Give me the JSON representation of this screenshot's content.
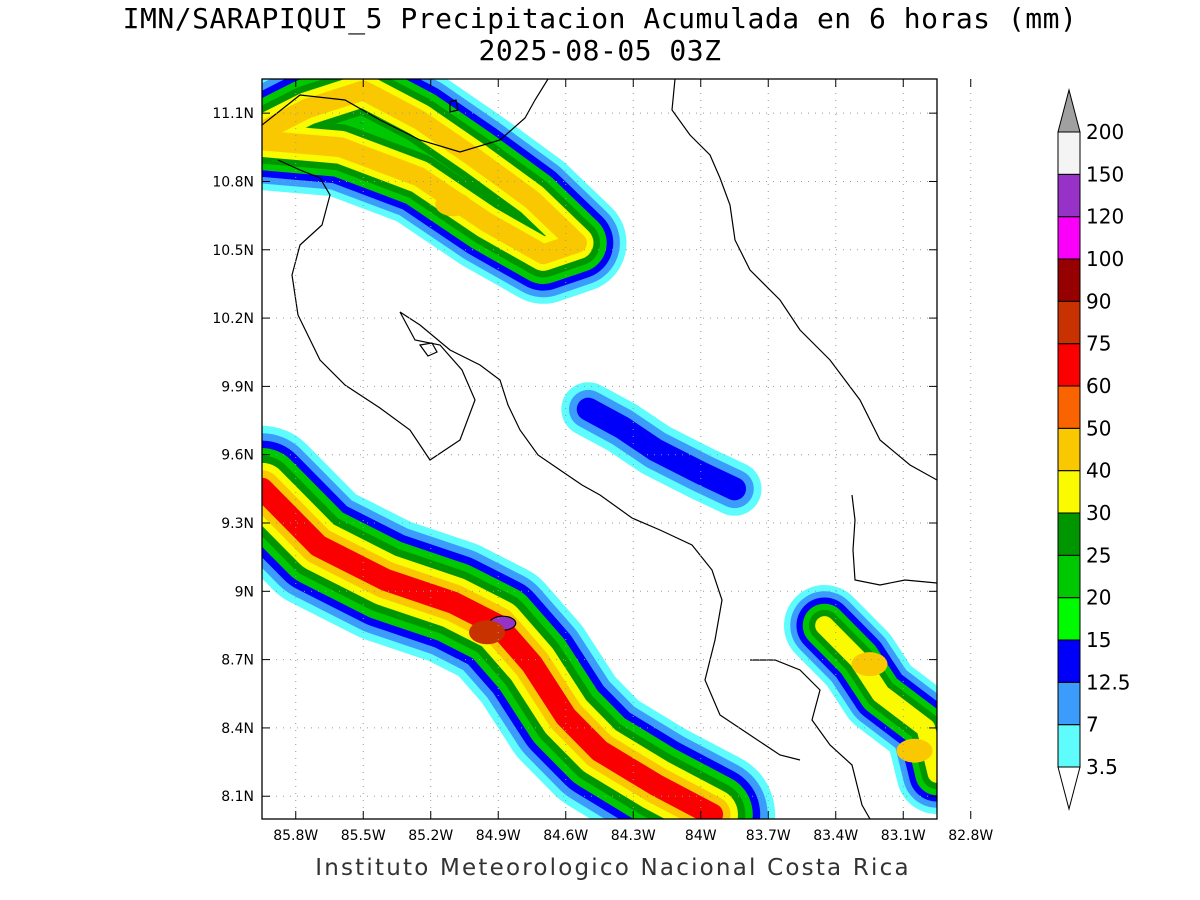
{
  "title": "IMN/SARAPIQUI_5 Precipitacion Acumulada en 6 horas (mm)",
  "subtitle": "2025-08-05 03Z",
  "footer": "Instituto Meteorologico Nacional Costa Rica",
  "axes": {
    "lon_ticks": [
      "85.8W",
      "85.5W",
      "85.2W",
      "84.9W",
      "84.6W",
      "84.3W",
      "84W",
      "83.7W",
      "83.4W",
      "83.1W",
      "82.8W"
    ],
    "lon_values": [
      -85.8,
      -85.5,
      -85.2,
      -84.9,
      -84.6,
      -84.3,
      -84.0,
      -83.7,
      -83.4,
      -83.1,
      -82.8
    ],
    "lat_ticks": [
      "11.1N",
      "10.8N",
      "10.5N",
      "10.2N",
      "9.9N",
      "9.6N",
      "9.3N",
      "9N",
      "8.7N",
      "8.4N",
      "8.1N"
    ],
    "lat_values": [
      11.1,
      10.8,
      10.5,
      10.2,
      9.9,
      9.6,
      9.3,
      9.0,
      8.7,
      8.4,
      8.1
    ],
    "lon_range": [
      -85.95,
      -82.95
    ],
    "lat_range": [
      8.0,
      11.25
    ],
    "grid": true
  },
  "colorbar": {
    "labels": [
      "3.5",
      "7",
      "12.5",
      "15",
      "20",
      "25",
      "30",
      "40",
      "50",
      "60",
      "75",
      "90",
      "100",
      "120",
      "150",
      "200"
    ],
    "colors": [
      "#5efcfc",
      "#3c9cfc",
      "#0000fa",
      "#00fa00",
      "#00c800",
      "#009600",
      "#fafa00",
      "#fac800",
      "#fa6400",
      "#fa0000",
      "#c83200",
      "#960000",
      "#fa00fa",
      "#9632c8",
      "#f4f4f4",
      "#a0a0a0"
    ],
    "lower_cap": "#ffffff",
    "upper_cap": "#a0a0a0"
  },
  "precip_bands": [
    {
      "path": [
        [
          -85.95,
          11.02
        ],
        [
          -85.75,
          11.12
        ],
        [
          -85.5,
          11.2
        ],
        [
          -85.25,
          11.07
        ],
        [
          -85.0,
          10.9
        ],
        [
          -84.75,
          10.72
        ],
        [
          -84.55,
          10.53
        ],
        [
          -84.7,
          10.48
        ],
        [
          -84.95,
          10.62
        ],
        [
          -85.25,
          10.82
        ],
        [
          -85.6,
          10.95
        ],
        [
          -85.95,
          10.98
        ]
      ],
      "levels": [
        3.5,
        7,
        12.5,
        20,
        25,
        30,
        40
      ],
      "width_deg": 0.22
    },
    {
      "path": [
        [
          -85.95,
          9.45
        ],
        [
          -85.7,
          9.2
        ],
        [
          -85.4,
          9.05
        ],
        [
          -85.1,
          8.95
        ],
        [
          -84.9,
          8.85
        ],
        [
          -84.75,
          8.68
        ],
        [
          -84.6,
          8.45
        ],
        [
          -84.45,
          8.3
        ],
        [
          -84.2,
          8.15
        ],
        [
          -83.95,
          8.02
        ]
      ],
      "levels": [
        3.5,
        7,
        12.5,
        20,
        25,
        30,
        40,
        60
      ],
      "width_deg": 0.28
    },
    {
      "path": [
        [
          -84.5,
          9.8
        ],
        [
          -84.35,
          9.72
        ],
        [
          -84.2,
          9.62
        ],
        [
          -84.0,
          9.52
        ],
        [
          -83.85,
          9.45
        ]
      ],
      "levels": [
        3.5,
        7,
        12.5
      ],
      "width_deg": 0.12
    },
    {
      "path": [
        [
          -83.45,
          8.85
        ],
        [
          -83.3,
          8.7
        ],
        [
          -83.2,
          8.55
        ],
        [
          -83.0,
          8.4
        ],
        [
          -82.95,
          8.2
        ]
      ],
      "levels": [
        3.5,
        7,
        12.5,
        20,
        25,
        30
      ],
      "width_deg": 0.18
    }
  ],
  "peaks": [
    {
      "lon": -84.88,
      "lat": 8.86,
      "value": 120
    },
    {
      "lon": -84.95,
      "lat": 8.82,
      "value": 75
    },
    {
      "lon": -85.1,
      "lat": 10.7,
      "value": 40
    },
    {
      "lon": -83.25,
      "lat": 8.68,
      "value": 40
    },
    {
      "lon": -83.05,
      "lat": 8.3,
      "value": 40
    }
  ]
}
